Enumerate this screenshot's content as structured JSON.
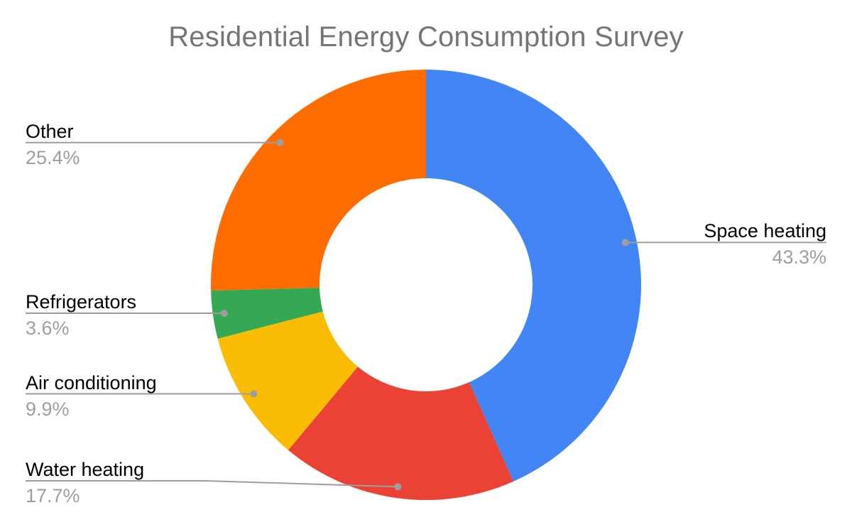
{
  "title": "Residential Energy Consumption Survey",
  "chart_data": {
    "type": "pie",
    "subtype": "donut",
    "title": "Residential Energy Consumption Survey",
    "categories": [
      "Space heating",
      "Water heating",
      "Air conditioning",
      "Refrigerators",
      "Other"
    ],
    "values": [
      43.3,
      17.7,
      9.9,
      3.6,
      25.4
    ],
    "unit": "%",
    "colors": [
      "#4285f4",
      "#ea4335",
      "#fbbc04",
      "#34a853",
      "#ff6d01"
    ],
    "start_angle_deg": 0,
    "direction": "clockwise",
    "inner_radius_ratio": 0.5,
    "legend_position": "labeled-callouts",
    "grid": false
  },
  "labels": [
    {
      "name": "Space heating",
      "pct": "43.3%"
    },
    {
      "name": "Water heating",
      "pct": "17.7%"
    },
    {
      "name": "Air conditioning",
      "pct": "9.9%"
    },
    {
      "name": "Refrigerators",
      "pct": "3.6%"
    },
    {
      "name": "Other",
      "pct": "25.4%"
    }
  ],
  "colors": {
    "background": "#ffffff",
    "title_text": "#757575",
    "label_text": "#000000",
    "percent_text": "#9e9e9e",
    "leader_line": "#9e9e9e"
  }
}
